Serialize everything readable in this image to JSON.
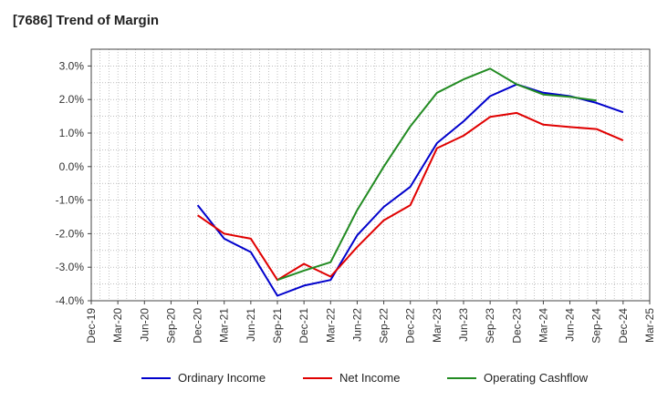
{
  "chart_data": {
    "type": "line",
    "title": "[7686]  Trend of Margin",
    "x_labels": [
      "Dec-19",
      "Mar-20",
      "Jun-20",
      "Sep-20",
      "Dec-20",
      "Mar-21",
      "Jun-21",
      "Sep-21",
      "Dec-21",
      "Mar-22",
      "Jun-22",
      "Sep-22",
      "Dec-22",
      "Mar-23",
      "Jun-23",
      "Sep-23",
      "Dec-23",
      "Mar-24",
      "Jun-24",
      "Sep-24",
      "Dec-24",
      "Mar-25"
    ],
    "y_ticks": [
      "3.0%",
      "2.0%",
      "1.0%",
      "0.0%",
      "-1.0%",
      "-2.0%",
      "-3.0%",
      "-4.0%"
    ],
    "ylim": [
      -4.0,
      3.5
    ],
    "grid": true,
    "legend_position": "bottom",
    "series": [
      {
        "name": "Ordinary Income",
        "color": "#0000cc",
        "values": [
          null,
          null,
          null,
          null,
          -1.15,
          -2.15,
          -2.55,
          -3.85,
          -3.55,
          -3.38,
          -2.05,
          -1.2,
          -0.6,
          0.7,
          1.35,
          2.1,
          2.45,
          2.2,
          2.1,
          1.9,
          1.62,
          null
        ]
      },
      {
        "name": "Net Income",
        "color": "#e00000",
        "values": [
          null,
          null,
          null,
          null,
          -1.45,
          -2.0,
          -2.15,
          -3.38,
          -2.9,
          -3.28,
          -2.4,
          -1.6,
          -1.15,
          0.55,
          0.92,
          1.48,
          1.6,
          1.25,
          1.18,
          1.12,
          0.78,
          null
        ]
      },
      {
        "name": "Operating Cashflow",
        "color": "#228b22",
        "values": [
          null,
          null,
          null,
          null,
          null,
          null,
          null,
          -3.38,
          -3.1,
          -2.85,
          -1.3,
          0.0,
          1.2,
          2.2,
          2.6,
          2.92,
          2.45,
          2.15,
          2.08,
          1.97,
          null,
          null
        ]
      }
    ]
  }
}
